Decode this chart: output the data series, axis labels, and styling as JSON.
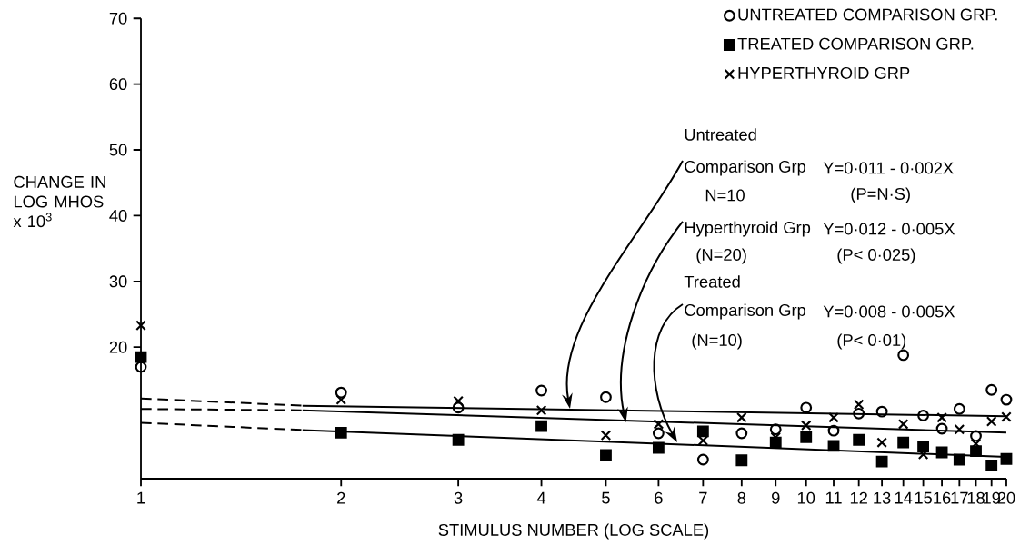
{
  "chart_data": {
    "type": "scatter",
    "xlabel": "STIMULUS NUMBER (LOG SCALE)",
    "ylabel": "CHANGE IN LOG MHOS x 10$^{3}$",
    "x": [
      1,
      2,
      3,
      4,
      5,
      6,
      7,
      8,
      9,
      10,
      11,
      12,
      13,
      14,
      15,
      16,
      17,
      18,
      19,
      20
    ],
    "series": [
      {
        "name": "UNTREATED COMPARISON GRP.",
        "color": "#000000",
        "marker": "circle",
        "values": [
          17.0,
          13.1,
          10.8,
          13.4,
          12.4,
          6.9,
          2.9,
          6.9,
          7.5,
          10.8,
          7.3,
          9.9,
          10.2,
          18.8,
          9.6,
          7.6,
          10.6,
          6.5,
          13.5,
          12.0
        ]
      },
      {
        "name": "TREATED COMPARISON GRP.",
        "color": "#000000",
        "marker": "square",
        "values": [
          18.5,
          7.0,
          5.9,
          8.0,
          3.6,
          4.7,
          7.2,
          2.8,
          5.5,
          6.3,
          5.0,
          5.9,
          2.6,
          5.5,
          4.9,
          4.0,
          2.9,
          4.2,
          2.0,
          3.0
        ]
      },
      {
        "name": "HYPERTHYROID GRP",
        "color": "#000000",
        "marker": "cross",
        "values": [
          23.3,
          12.0,
          11.8,
          10.4,
          6.6,
          8.3,
          5.8,
          9.3,
          6.3,
          8.1,
          9.3,
          11.3,
          5.5,
          8.3,
          3.7,
          9.3,
          7.5,
          5.3,
          8.7,
          9.4
        ]
      },
      {
        "type": "line",
        "color": "#000000",
        "line_style": "solid",
        "x": [
          1.75,
          20
        ],
        "values": [
          11.1,
          9.5
        ]
      },
      {
        "type": "line",
        "color": "#000000",
        "line_style": "solid",
        "x": [
          1.75,
          20
        ],
        "values": [
          10.4,
          7.0
        ]
      },
      {
        "type": "line",
        "color": "#000000",
        "line_style": "solid",
        "x": [
          1.75,
          20
        ],
        "values": [
          7.4,
          3.3
        ]
      },
      {
        "type": "line",
        "color": "#000000",
        "line_style": "dashed",
        "x": [
          1,
          1.75
        ],
        "values": [
          12.2,
          11.1
        ]
      },
      {
        "type": "line",
        "color": "#000000",
        "line_style": "dashed",
        "x": [
          1,
          1.75
        ],
        "values": [
          10.6,
          10.4
        ]
      },
      {
        "type": "line",
        "color": "#000000",
        "line_style": "dashed",
        "x": [
          1,
          1.75
        ],
        "values": [
          8.5,
          7.4
        ]
      }
    ],
    "xlim": [
      1,
      20
    ],
    "ylim": [
      0,
      70
    ],
    "xticks": [
      1,
      2,
      3,
      4,
      5,
      6,
      7,
      8,
      9,
      10,
      11,
      12,
      13,
      14,
      15,
      16,
      17,
      18,
      19,
      20
    ],
    "yticks": [
      20,
      30,
      40,
      50,
      60,
      70
    ],
    "log": "x",
    "legend": "top right",
    "annotations": [
      "Untreated",
      "Comparison Grp",
      "N=10",
      "Y=0·011 - 0·002X",
      "(P=N·S)",
      {
        "text": "Hyperthyroid Grp",
        "x": 5.3,
        "y": 10.8
      },
      "Y=0·012 - 0·005X",
      "(N=20)",
      "(P< 0·025)",
      "Treated",
      "Comparison Grp",
      "Y=0·008 - 0·005X",
      "(N=10)",
      "(P< 0·01)"
    ]
  }
}
